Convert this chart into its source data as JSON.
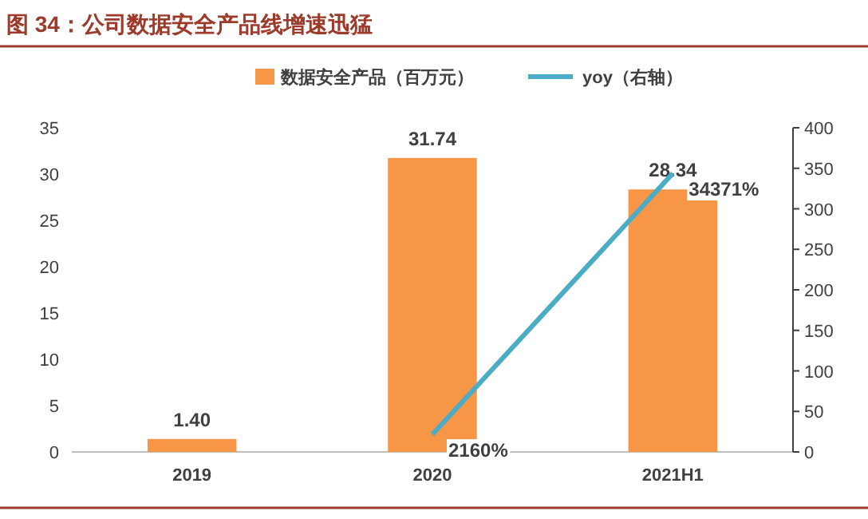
{
  "chart_data": {
    "type": "bar",
    "title": "图 34：公司数据安全产品线增速迅猛",
    "categories": [
      "2019",
      "2020",
      "2021H1"
    ],
    "series": [
      {
        "name": "数据安全产品（百万元）",
        "color": "#f79646",
        "values": [
          1.4,
          31.74,
          28.34
        ],
        "value_labels": [
          "1.40",
          "31.74",
          "28.34"
        ]
      },
      {
        "name": "yoy（右轴）",
        "type": "line",
        "axis": "y2",
        "color": "#4bacc6",
        "values": [
          null,
          21.6,
          343.71
        ],
        "value_labels": [
          null,
          "2160%",
          "34371%"
        ]
      }
    ],
    "ylim": [
      0,
      35
    ],
    "yticks": [
      0,
      5,
      10,
      15,
      20,
      25,
      30,
      35
    ],
    "y2lim": [
      0,
      400
    ],
    "y2ticks": [
      0,
      50,
      100,
      150,
      200,
      250,
      300,
      350,
      400
    ],
    "grid": false,
    "legend": "top"
  }
}
